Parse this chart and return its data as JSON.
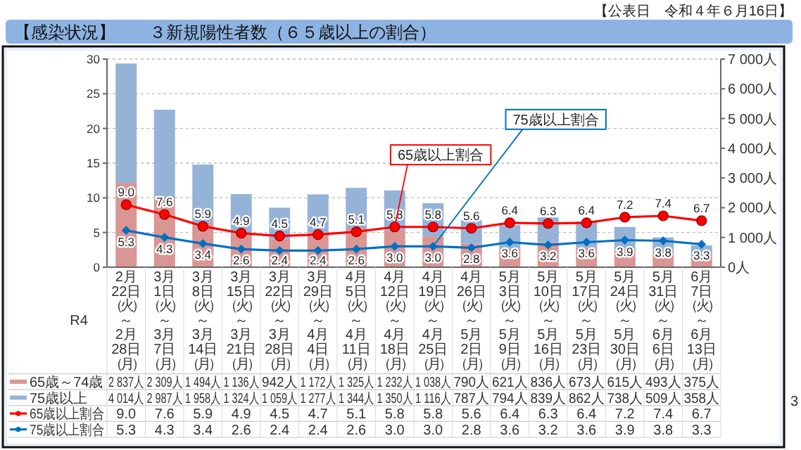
{
  "chart_data": {
    "type": "bar",
    "title": "【感染状況】　　３新規陽性者数（６５歳以上の割合）",
    "subtitle": "【公表日　令和４年６月16日】",
    "categories": [
      "2月22日（火）～2月28日（月）",
      "3月1日（火）～3月7日（月）",
      "3月8日（火）～3月14日（月）",
      "3月15日（火）～3月21日（月）",
      "3月22日（火）～3月28日（月）",
      "3月29日（火）～4月4日（月）",
      "4月5日（火）～4月11日（月）",
      "4月12日（火）～4月18日（月）",
      "4月19日（火）～4月25日（月）",
      "4月26日（火）～5月2日（月）",
      "5月3日（火）～5月9日（月）",
      "5月10日（火）～5月16日（月）",
      "5月17日（火）～5月23日（月）",
      "5月24日（火）～5月30日（月）",
      "5月31日（火）～6月6日（月）",
      "6月7日（火）～6月13日（月）"
    ],
    "stacked": true,
    "series": [
      {
        "name": "65歳～74歳",
        "type": "bar",
        "axis": "y2",
        "color": "#da9694",
        "values": [
          2837,
          2309,
          1494,
          1136,
          942,
          1172,
          1325,
          1232,
          1038,
          790,
          621,
          836,
          673,
          615,
          493,
          375
        ],
        "value_labels": [
          "2 837人",
          "2 309人",
          "1 494人",
          "1 136人",
          "942人",
          "1 172人",
          "1 325人",
          "1 232人",
          "1 038人",
          "790人",
          "621人",
          "836人",
          "673人",
          "615人",
          "493人",
          "375人"
        ]
      },
      {
        "name": "75歳以上",
        "type": "bar",
        "axis": "y2",
        "color": "#95b3d7",
        "values": [
          4014,
          2987,
          1958,
          1324,
          1059,
          1277,
          1344,
          1350,
          1116,
          787,
          794,
          839,
          862,
          738,
          509,
          358
        ],
        "value_labels": [
          "4 014人",
          "2 987人",
          "1 958人",
          "1 324人",
          "1 059人",
          "1 277人",
          "1 344人",
          "1 350人",
          "1 116人",
          "787人",
          "794人",
          "839人",
          "862人",
          "738人",
          "509人",
          "358人"
        ]
      },
      {
        "name": "65歳以上割合",
        "type": "line",
        "color": "#ff0000",
        "marker": "circle",
        "values": [
          9.0,
          7.6,
          5.9,
          4.9,
          4.5,
          4.7,
          5.1,
          5.8,
          5.8,
          5.6,
          6.4,
          6.3,
          6.4,
          7.2,
          7.4,
          6.7
        ],
        "value_labels": [
          "9.0",
          "7.6",
          "5.9",
          "4.9",
          "4.5",
          "4.7",
          "5.1",
          "5.8",
          "5.8",
          "5.6",
          "6.4",
          "6.3",
          "6.4",
          "7.2",
          "7.4",
          "6.7"
        ]
      },
      {
        "name": "75歳以上割合",
        "type": "line",
        "color": "#0070c0",
        "marker": "diamond",
        "values": [
          5.3,
          4.3,
          3.4,
          2.6,
          2.4,
          2.4,
          2.6,
          3.0,
          3.0,
          2.8,
          3.6,
          3.2,
          3.6,
          3.9,
          3.8,
          3.3
        ],
        "value_labels": [
          "5.3",
          "4.3",
          "3.4",
          "2.6",
          "2.4",
          "2.4",
          "2.6",
          "3.0",
          "3.0",
          "2.8",
          "3.6",
          "3.2",
          "3.6",
          "3.9",
          "3.8",
          "3.3"
        ]
      }
    ],
    "ylim": [
      0,
      30
    ],
    "yticks": [
      0,
      5,
      10,
      15,
      20,
      25,
      30
    ],
    "y2lim": [
      0,
      7000
    ],
    "y2ticks": [
      {
        "value": 0,
        "label": "0人"
      },
      {
        "value": 1000,
        "label": "1 000人"
      },
      {
        "value": 2000,
        "label": "2 000人"
      },
      {
        "value": 3000,
        "label": "3 000人"
      },
      {
        "value": 4000,
        "label": "4 000人"
      },
      {
        "value": 5000,
        "label": "5 000人"
      },
      {
        "value": 6000,
        "label": "6 000人"
      },
      {
        "value": 7000,
        "label": "7 000人"
      }
    ],
    "grid": "y",
    "legend": "bottom",
    "data_labels": true,
    "annotations": [
      {
        "text": "65歳以上割合",
        "x": "4月12日（火）～4月18日（月）",
        "y": 5.8
      },
      {
        "text": "75歳以上割合",
        "x": "4月19日（火）～4月25日（月）",
        "y": 3.0
      },
      "R4",
      "3"
    ]
  }
}
